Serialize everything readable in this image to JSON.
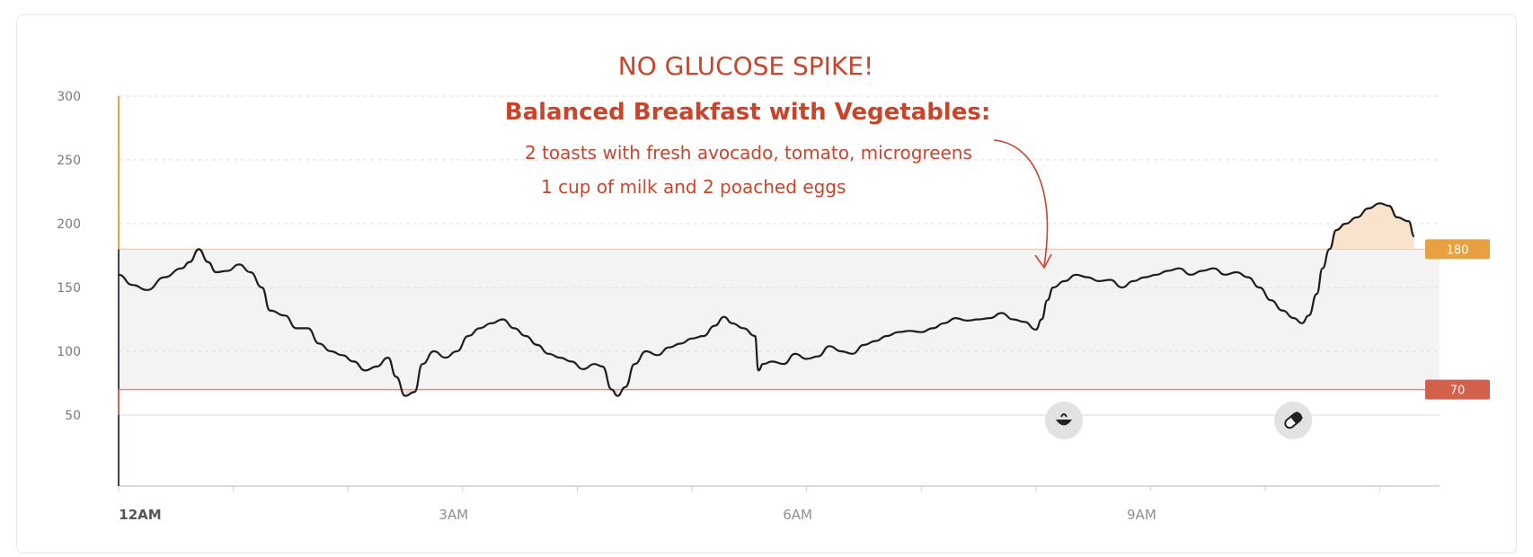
{
  "annotation": {
    "headline": "NO GLUCOSE SPIKE!",
    "subtitle": "Balanced Breakfast with Vegetables:",
    "line1": "2 toasts with fresh avocado, tomato, microgreens",
    "line2": "1 cup of milk  and 2 poached eggs"
  },
  "colors": {
    "glucose_line": "#1e1e1e",
    "high_threshold": "#e8a040",
    "low_threshold": "#d35f4d",
    "target_band": "#f3f3f3",
    "above_high_fill": "#f7dcc0",
    "annotation_text": "#c8452b"
  },
  "chart_data": {
    "type": "line",
    "title": "",
    "xlabel": "",
    "ylabel": "",
    "y_ticks": [
      "300",
      "250",
      "200",
      "150",
      "100",
      "50"
    ],
    "x_ticks": [
      {
        "label": "12AM",
        "hour": 0
      },
      {
        "label": "3AM",
        "hour": 3
      },
      {
        "label": "6AM",
        "hour": 6
      },
      {
        "label": "9AM",
        "hour": 9
      }
    ],
    "ylim": [
      0,
      300
    ],
    "xlim_hours": [
      0,
      11.6
    ],
    "thresholds": {
      "high": {
        "value": 180,
        "label": "180"
      },
      "low": {
        "value": 70,
        "label": "70"
      }
    },
    "grid": true,
    "events": [
      {
        "type": "meal",
        "hour": 8.15,
        "icon": "meal-bowl-icon"
      },
      {
        "type": "medication",
        "hour": 10.15,
        "icon": "pill-icon"
      }
    ],
    "series": [
      {
        "points": [
          [
            0.0,
            160
          ],
          [
            0.12,
            152
          ],
          [
            0.25,
            148
          ],
          [
            0.4,
            158
          ],
          [
            0.55,
            165
          ],
          [
            0.62,
            170
          ],
          [
            0.7,
            180
          ],
          [
            0.78,
            170
          ],
          [
            0.85,
            162
          ],
          [
            0.95,
            163
          ],
          [
            1.05,
            168
          ],
          [
            1.15,
            162
          ],
          [
            1.25,
            150
          ],
          [
            1.32,
            132
          ],
          [
            1.45,
            128
          ],
          [
            1.55,
            118
          ],
          [
            1.65,
            118
          ],
          [
            1.75,
            106
          ],
          [
            1.85,
            100
          ],
          [
            1.95,
            97
          ],
          [
            2.05,
            92
          ],
          [
            2.15,
            85
          ],
          [
            2.25,
            88
          ],
          [
            2.35,
            95
          ],
          [
            2.42,
            80
          ],
          [
            2.5,
            65
          ],
          [
            2.58,
            68
          ],
          [
            2.65,
            90
          ],
          [
            2.75,
            100
          ],
          [
            2.85,
            95
          ],
          [
            2.95,
            100
          ],
          [
            3.05,
            112
          ],
          [
            3.15,
            118
          ],
          [
            3.25,
            122
          ],
          [
            3.35,
            125
          ],
          [
            3.45,
            118
          ],
          [
            3.55,
            112
          ],
          [
            3.65,
            105
          ],
          [
            3.75,
            98
          ],
          [
            3.85,
            95
          ],
          [
            3.95,
            92
          ],
          [
            4.05,
            86
          ],
          [
            4.15,
            90
          ],
          [
            4.22,
            88
          ],
          [
            4.3,
            70
          ],
          [
            4.35,
            65
          ],
          [
            4.42,
            72
          ],
          [
            4.5,
            90
          ],
          [
            4.6,
            100
          ],
          [
            4.7,
            97
          ],
          [
            4.8,
            103
          ],
          [
            4.9,
            106
          ],
          [
            5.0,
            110
          ],
          [
            5.1,
            112
          ],
          [
            5.2,
            120
          ],
          [
            5.28,
            127
          ],
          [
            5.35,
            122
          ],
          [
            5.45,
            118
          ],
          [
            5.55,
            112
          ],
          [
            5.58,
            85
          ],
          [
            5.62,
            90
          ],
          [
            5.7,
            92
          ],
          [
            5.8,
            90
          ],
          [
            5.9,
            98
          ],
          [
            6.0,
            94
          ],
          [
            6.1,
            96
          ],
          [
            6.2,
            104
          ],
          [
            6.3,
            100
          ],
          [
            6.4,
            98
          ],
          [
            6.5,
            105
          ],
          [
            6.6,
            108
          ],
          [
            6.7,
            112
          ],
          [
            6.8,
            115
          ],
          [
            6.9,
            116
          ],
          [
            7.0,
            115
          ],
          [
            7.1,
            118
          ],
          [
            7.2,
            122
          ],
          [
            7.3,
            126
          ],
          [
            7.4,
            124
          ],
          [
            7.5,
            125
          ],
          [
            7.6,
            126
          ],
          [
            7.7,
            130
          ],
          [
            7.8,
            125
          ],
          [
            7.9,
            123
          ],
          [
            8.0,
            117
          ],
          [
            8.05,
            125
          ],
          [
            8.1,
            140
          ],
          [
            8.15,
            150
          ],
          [
            8.25,
            155
          ],
          [
            8.35,
            160
          ],
          [
            8.45,
            158
          ],
          [
            8.55,
            155
          ],
          [
            8.65,
            156
          ],
          [
            8.75,
            150
          ],
          [
            8.85,
            155
          ],
          [
            8.95,
            158
          ],
          [
            9.05,
            160
          ],
          [
            9.15,
            163
          ],
          [
            9.25,
            165
          ],
          [
            9.35,
            160
          ],
          [
            9.45,
            163
          ],
          [
            9.55,
            165
          ],
          [
            9.65,
            160
          ],
          [
            9.75,
            162
          ],
          [
            9.85,
            158
          ],
          [
            9.95,
            150
          ],
          [
            10.05,
            140
          ],
          [
            10.15,
            132
          ],
          [
            10.25,
            126
          ],
          [
            10.32,
            122
          ],
          [
            10.38,
            128
          ],
          [
            10.45,
            145
          ],
          [
            10.5,
            165
          ],
          [
            10.56,
            180
          ],
          [
            10.62,
            195
          ],
          [
            10.7,
            200
          ],
          [
            10.8,
            205
          ],
          [
            10.9,
            212
          ],
          [
            11.0,
            216
          ],
          [
            11.08,
            214
          ],
          [
            11.15,
            205
          ],
          [
            11.25,
            202
          ],
          [
            11.3,
            190
          ]
        ]
      }
    ]
  }
}
